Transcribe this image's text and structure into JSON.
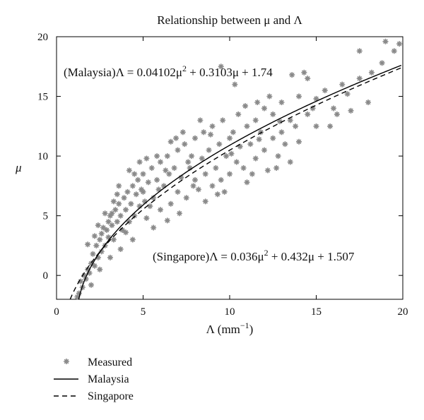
{
  "chart_data": {
    "type": "scatter",
    "title": "Relationship between μ and Λ",
    "xlabel_base": "Λ (mm",
    "xlabel_sup": "−1",
    "xlabel_end": ")",
    "ylabel": "μ",
    "xlim": [
      0,
      20
    ],
    "ylim": [
      -2,
      20
    ],
    "xticks": [
      0,
      5,
      10,
      15,
      20
    ],
    "yticks": [
      0,
      5,
      10,
      15,
      20
    ],
    "grid": false,
    "legend_position": "bottom-left (outside plot)",
    "legend": [
      {
        "key": "measured",
        "label": "Measured"
      },
      {
        "key": "malaysia",
        "label": "Malaysia"
      },
      {
        "key": "singapore",
        "label": "Singapore"
      }
    ],
    "annotations": {
      "malaysia": {
        "prefix": "(Malaysia)Λ = 0.04102μ",
        "sup": "2",
        "suffix": " + 0.3103μ + 1.74"
      },
      "singapore": {
        "prefix": "(Singapore)Λ = 0.036μ",
        "sup": "2",
        "suffix": " + 0.432μ + 1.507"
      }
    },
    "series": [
      {
        "name": "Measured",
        "style": "scatter",
        "color": "#8a8a8a",
        "points": [
          [
            1.2,
            -1.8
          ],
          [
            1.3,
            -1.5
          ],
          [
            1.5,
            -1.0
          ],
          [
            1.4,
            -0.5
          ],
          [
            1.6,
            0.0
          ],
          [
            1.8,
            0.5
          ],
          [
            1.7,
            -0.3
          ],
          [
            2.0,
            1.0
          ],
          [
            1.9,
            0.2
          ],
          [
            2.1,
            1.8
          ],
          [
            2.2,
            0.8
          ],
          [
            2.3,
            2.5
          ],
          [
            2.4,
            1.5
          ],
          [
            2.5,
            3.0
          ],
          [
            2.6,
            2.0
          ],
          [
            2.6,
            3.5
          ],
          [
            2.7,
            4.0
          ],
          [
            2.8,
            2.5
          ],
          [
            2.9,
            3.8
          ],
          [
            3.0,
            4.5
          ],
          [
            3.0,
            3.2
          ],
          [
            3.1,
            5.0
          ],
          [
            3.2,
            4.2
          ],
          [
            3.3,
            3.0
          ],
          [
            3.4,
            5.5
          ],
          [
            3.5,
            4.5
          ],
          [
            3.6,
            6.0
          ],
          [
            3.7,
            5.0
          ],
          [
            3.8,
            3.8
          ],
          [
            3.9,
            6.5
          ],
          [
            4.0,
            5.5
          ],
          [
            4.1,
            7.0
          ],
          [
            4.2,
            4.5
          ],
          [
            4.3,
            6.0
          ],
          [
            4.4,
            7.5
          ],
          [
            4.5,
            5.0
          ],
          [
            4.6,
            6.8
          ],
          [
            4.7,
            8.0
          ],
          [
            4.8,
            5.8
          ],
          [
            4.9,
            7.2
          ],
          [
            5.0,
            8.5
          ],
          [
            5.1,
            6.2
          ],
          [
            5.2,
            4.8
          ],
          [
            5.3,
            7.8
          ],
          [
            5.5,
            9.0
          ],
          [
            5.6,
            6.5
          ],
          [
            5.8,
            8.0
          ],
          [
            6.0,
            9.5
          ],
          [
            6.0,
            5.5
          ],
          [
            6.2,
            7.5
          ],
          [
            6.4,
            10.0
          ],
          [
            6.5,
            8.5
          ],
          [
            6.6,
            6.0
          ],
          [
            6.8,
            9.0
          ],
          [
            7.0,
            10.5
          ],
          [
            7.0,
            7.0
          ],
          [
            7.2,
            8.2
          ],
          [
            7.4,
            11.0
          ],
          [
            7.5,
            6.5
          ],
          [
            7.6,
            9.5
          ],
          [
            7.8,
            10.0
          ],
          [
            8.0,
            8.0
          ],
          [
            8.0,
            11.5
          ],
          [
            8.2,
            7.2
          ],
          [
            8.4,
            9.8
          ],
          [
            8.5,
            12.0
          ],
          [
            8.6,
            8.5
          ],
          [
            8.8,
            10.5
          ],
          [
            9.0,
            7.5
          ],
          [
            9.0,
            12.5
          ],
          [
            9.2,
            9.0
          ],
          [
            9.4,
            11.0
          ],
          [
            9.5,
            8.0
          ],
          [
            9.6,
            13.0
          ],
          [
            9.8,
            10.0
          ],
          [
            10.0,
            11.5
          ],
          [
            10.0,
            8.5
          ],
          [
            10.2,
            12.0
          ],
          [
            10.4,
            9.5
          ],
          [
            10.5,
            13.5
          ],
          [
            10.6,
            10.8
          ],
          [
            10.8,
            9.0
          ],
          [
            11.0,
            12.5
          ],
          [
            11.0,
            7.8
          ],
          [
            11.2,
            11.0
          ],
          [
            11.5,
            13.0
          ],
          [
            11.5,
            9.8
          ],
          [
            11.8,
            12.0
          ],
          [
            12.0,
            10.5
          ],
          [
            12.0,
            14.0
          ],
          [
            12.2,
            8.8
          ],
          [
            12.5,
            11.5
          ],
          [
            12.5,
            13.5
          ],
          [
            12.8,
            10.0
          ],
          [
            13.0,
            12.0
          ],
          [
            13.0,
            14.5
          ],
          [
            13.2,
            11.0
          ],
          [
            13.5,
            13.0
          ],
          [
            13.5,
            9.5
          ],
          [
            13.8,
            12.5
          ],
          [
            14.0,
            11.2
          ],
          [
            14.0,
            15.0
          ],
          [
            14.5,
            13.5
          ],
          [
            14.5,
            16.5
          ],
          [
            15.0,
            12.5
          ],
          [
            15.0,
            14.8
          ],
          [
            15.5,
            15.5
          ],
          [
            15.8,
            12.5
          ],
          [
            16.0,
            14.0
          ],
          [
            16.2,
            13.5
          ],
          [
            16.5,
            16.0
          ],
          [
            17.0,
            13.8
          ],
          [
            17.5,
            16.5
          ],
          [
            17.5,
            18.8
          ],
          [
            18.0,
            14.5
          ],
          [
            18.2,
            17.0
          ],
          [
            18.8,
            17.8
          ],
          [
            19.0,
            19.6
          ],
          [
            19.5,
            18.8
          ],
          [
            19.8,
            19.4
          ],
          [
            9.5,
            17.5
          ],
          [
            10.3,
            16.0
          ],
          [
            11.6,
            14.5
          ],
          [
            12.3,
            15.0
          ],
          [
            13.6,
            16.8
          ],
          [
            14.3,
            17.0
          ],
          [
            3.2,
            5.2
          ],
          [
            3.5,
            6.8
          ],
          [
            4.0,
            3.6
          ],
          [
            4.5,
            8.5
          ],
          [
            5.0,
            7.0
          ],
          [
            5.4,
            5.8
          ],
          [
            6.3,
            8.8
          ],
          [
            6.9,
            11.5
          ],
          [
            7.3,
            12.0
          ],
          [
            8.3,
            13.0
          ],
          [
            5.8,
            10.0
          ],
          [
            6.6,
            11.2
          ],
          [
            2.4,
            4.2
          ],
          [
            2.8,
            5.2
          ],
          [
            3.6,
            7.5
          ],
          [
            4.8,
            9.5
          ],
          [
            5.2,
            9.8
          ],
          [
            7.9,
            7.5
          ],
          [
            8.9,
            11.8
          ],
          [
            10.9,
            14.2
          ],
          [
            9.3,
            6.8
          ],
          [
            11.3,
            8.5
          ],
          [
            12.7,
            9.0
          ],
          [
            2.2,
            3.3
          ],
          [
            1.8,
            2.6
          ],
          [
            2.0,
            -0.8
          ],
          [
            2.5,
            0.5
          ],
          [
            3.1,
            1.5
          ],
          [
            3.7,
            2.2
          ],
          [
            4.4,
            3.0
          ],
          [
            5.6,
            4.0
          ],
          [
            6.4,
            4.6
          ],
          [
            7.1,
            5.2
          ],
          [
            8.6,
            6.2
          ],
          [
            9.7,
            7.0
          ],
          [
            3.3,
            6.2
          ],
          [
            4.2,
            8.8
          ],
          [
            5.9,
            7.2
          ],
          [
            7.7,
            9.0
          ],
          [
            10.1,
            10.2
          ],
          [
            11.7,
            11.4
          ],
          [
            12.9,
            12.9
          ],
          [
            14.8,
            14.0
          ],
          [
            16.8,
            15.2
          ]
        ]
      },
      {
        "name": "Malaysia",
        "style": "solid",
        "color": "#000000",
        "coefficients": {
          "a": 0.04102,
          "b": 0.3103,
          "c": 1.74
        }
      },
      {
        "name": "Singapore",
        "style": "dashed",
        "color": "#000000",
        "coefficients": {
          "a": 0.036,
          "b": 0.432,
          "c": 1.507
        }
      }
    ]
  }
}
